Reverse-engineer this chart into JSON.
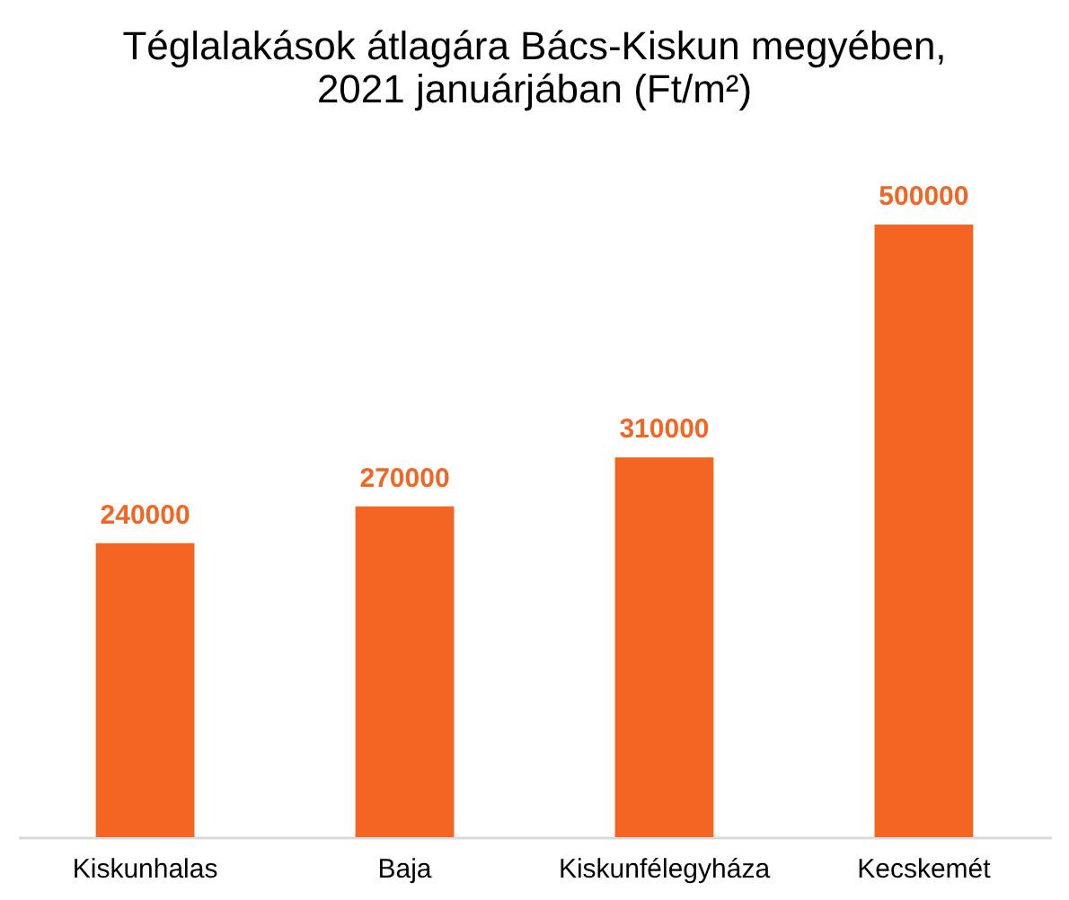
{
  "chart_data": {
    "type": "bar",
    "title": "Téglalakások átlagára Bács-Kiskun megyében,\n2021 januárjában (Ft/m²)",
    "categories": [
      "Kiskunhalas",
      "Baja",
      "Kiskunfélegyháza",
      "Kecskemét"
    ],
    "values": [
      240000,
      270000,
      310000,
      500000
    ],
    "color": "#f26522",
    "data_labels": true,
    "grid": false,
    "tick_labels": "x"
  }
}
